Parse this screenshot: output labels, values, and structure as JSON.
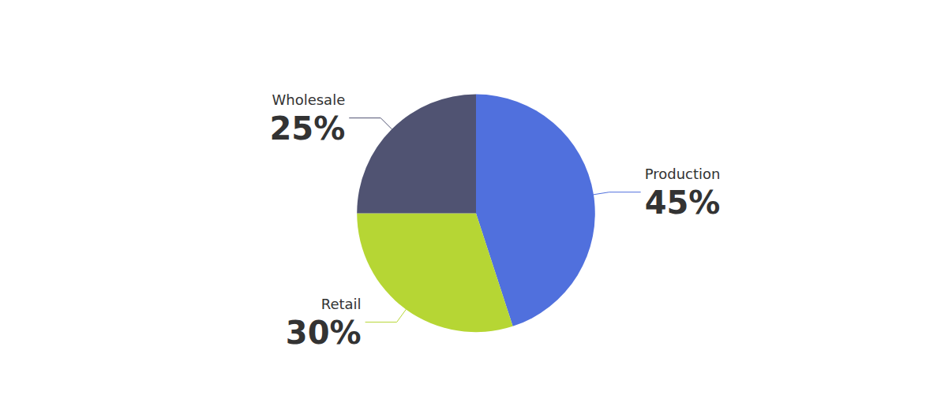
{
  "chart_data": {
    "type": "pie",
    "categories": [
      "Production",
      "Retail",
      "Wholesale"
    ],
    "values": [
      45,
      30,
      25
    ],
    "value_labels": [
      "45%",
      "30%",
      "25%"
    ],
    "data_labels": true
  }
}
